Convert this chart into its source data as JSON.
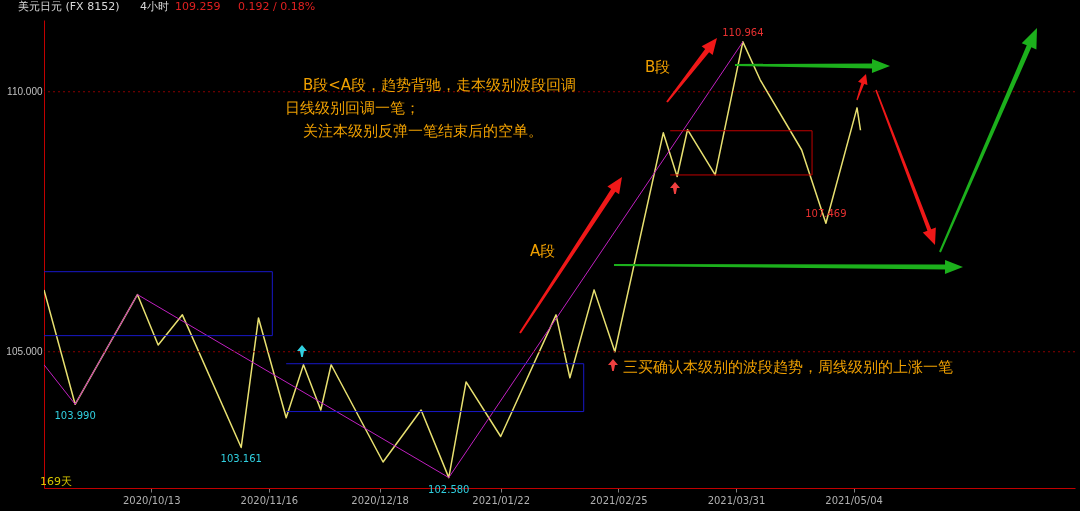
{
  "chart_data": {
    "type": "line",
    "title": "美元日元 (FX 8152)",
    "subtitle": "4小时",
    "xlim": [
      "2020-09-12",
      "2021-07-07"
    ],
    "ylim": [
      102.38,
      111.38
    ],
    "xticks": [
      {
        "value": "2020-10-13",
        "label": "2020/10/13"
      },
      {
        "value": "2020-11-16",
        "label": "2020/11/16"
      },
      {
        "value": "2020-12-18",
        "label": "2020/12/18"
      },
      {
        "value": "2021-01-22",
        "label": "2021/01/22"
      },
      {
        "value": "2021-02-25",
        "label": "2021/02/25"
      },
      {
        "value": "2021-03-31",
        "label": "2021/03/31"
      },
      {
        "value": "2021-05-04",
        "label": "2021/05/04"
      }
    ],
    "yticks": [
      {
        "value": 105,
        "label": "105.000"
      },
      {
        "value": 110,
        "label": "110.000"
      }
    ],
    "grid": false,
    "marker": "none",
    "line_style": "solid",
    "series": [
      {
        "color": "#e8e070",
        "x": [
          "2020-09-12",
          "2020-09-21",
          "2020-10-09",
          "2020-10-15",
          "2020-10-22",
          "2020-11-08",
          "2020-11-13",
          "2020-11-21",
          "2020-11-26",
          "2020-12-01",
          "2020-12-04",
          "2020-12-19",
          "2020-12-30",
          "2021-01-07",
          "2021-01-12",
          "2021-01-22",
          "2021-02-07",
          "2021-02-11",
          "2021-02-18",
          "2021-02-24",
          "2021-03-10",
          "2021-03-14",
          "2021-03-17",
          "2021-03-25",
          "2021-04-02",
          "2021-04-07",
          "2021-04-19",
          "2021-04-26",
          "2021-05-05",
          "2021-05-06"
        ],
        "values": [
          106.19,
          103.99,
          106.1,
          105.13,
          105.71,
          103.16,
          105.65,
          103.73,
          104.75,
          103.88,
          104.75,
          102.88,
          103.88,
          102.58,
          104.42,
          103.37,
          105.71,
          104.5,
          106.19,
          105.0,
          109.21,
          108.37,
          109.27,
          108.4,
          110.96,
          110.23,
          108.88,
          107.47,
          109.69,
          109.26
        ]
      },
      {
        "color": "#c020c0",
        "x": [
          "2020-09-12",
          "2020-09-21",
          "2020-10-09",
          "2021-01-07",
          "2021-04-02"
        ],
        "values": [
          104.75,
          103.99,
          106.1,
          102.58,
          110.96
        ]
      },
      {
        "color": "#1818c8",
        "x": [
          "2020-09-12",
          "2020-11-17",
          "2020-11-17",
          "2020-09-12"
        ],
        "values": [
          106.54,
          106.54,
          105.31,
          105.31
        ]
      },
      {
        "color": "#1818c8",
        "x": [
          "2020-11-21",
          "2021-02-15",
          "2021-02-15",
          "2020-11-21"
        ],
        "values": [
          104.77,
          104.77,
          103.85,
          103.85
        ]
      },
      {
        "color": "#c00000",
        "x": [
          "2021-03-12",
          "2021-04-22",
          "2021-04-22",
          "2021-03-12"
        ],
        "values": [
          109.25,
          109.25,
          108.4,
          108.4
        ]
      }
    ],
    "ref_lines": [
      {
        "axis": "y",
        "value": 110,
        "color": "#8b0000",
        "line_style": "dotted"
      },
      {
        "axis": "y",
        "value": 105,
        "color": "#8b0000",
        "line_style": "dotted"
      }
    ],
    "annotations": [
      "B段<A段，趋势背驰，走本级别波段回调",
      "日线级别回调一笔；",
      "关注本级别反弹一笔结束后的空单。",
      "B段",
      "A段",
      "三买确认本级别的波段趋势，周线级别的上涨一笔",
      "169天",
      "109.259",
      "0.192 / 0.18%",
      {
        "text": "103.990",
        "x": "2020-09-21",
        "y": 103.99
      },
      {
        "text": "103.161",
        "x": "2020-11-08",
        "y": 103.16
      },
      {
        "text": "102.580",
        "x": "2021-01-07",
        "y": 102.58
      },
      {
        "text": "110.964",
        "x": "2021-04-02",
        "y": 110.96
      },
      {
        "text": "107.469",
        "x": "2021-04-26",
        "y": 107.47
      }
    ]
  }
}
